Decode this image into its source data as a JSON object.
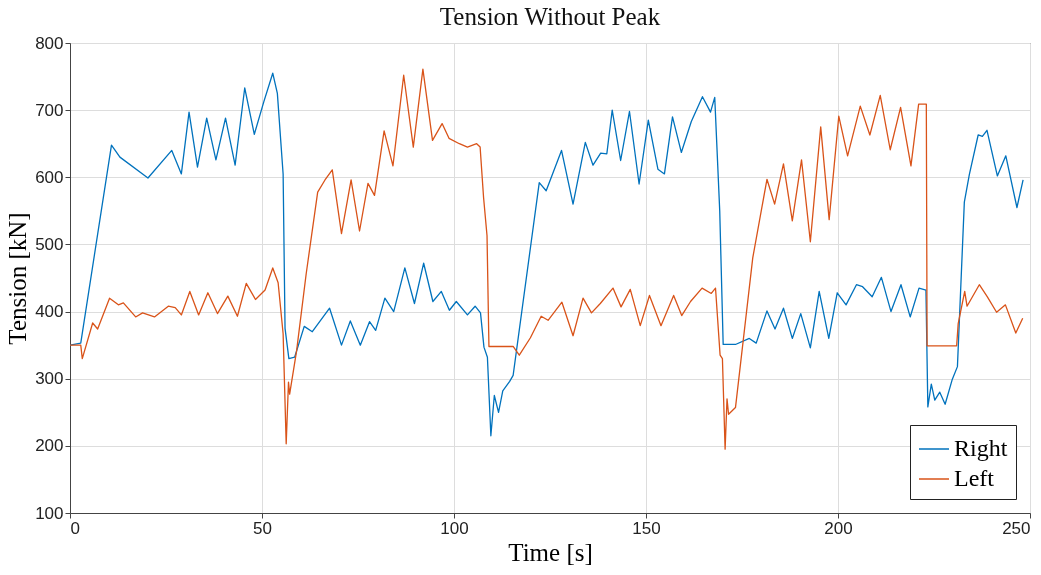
{
  "chart_data": {
    "type": "line",
    "title": "Tension Without Peak",
    "xlabel": "Time [s]",
    "ylabel": "Tension [kN]",
    "xlim": [
      0,
      250
    ],
    "xticks": [
      0,
      50,
      100,
      150,
      200,
      250
    ],
    "ylim": [
      100,
      800
    ],
    "yticks": [
      100,
      200,
      300,
      400,
      500,
      600,
      700,
      800
    ],
    "grid": true,
    "legend": "bottom right",
    "line_style": "solid",
    "marker": "none",
    "series": [
      {
        "name": "Right",
        "color": "#0072bd",
        "x": [
          0,
          2.8,
          10.8,
          13,
          20.3,
          26.5,
          29,
          31,
          33.2,
          35.6,
          38,
          40.5,
          43,
          45.5,
          48,
          50.5,
          52.8,
          54,
          55.5,
          56,
          57,
          58.5,
          61,
          63.1,
          67.6,
          70.7,
          73,
          75.6,
          78,
          79.6,
          82,
          84.3,
          87.2,
          89.7,
          92.1,
          94.5,
          96.7,
          98.8,
          100.6,
          103.5,
          105.5,
          106.9,
          107.8,
          108.7,
          109.6,
          110.5,
          111.6,
          112.7,
          114.5,
          115.4,
          122.2,
          124,
          128,
          131,
          134.2,
          136.2,
          138.2,
          139.8,
          141.2,
          143.4,
          145.7,
          148.2,
          150.6,
          153.1,
          154.8,
          156.9,
          159.2,
          161.8,
          164.7,
          166.8,
          167.9,
          169.2,
          170.1,
          173.3,
          176.9,
          178.7,
          181.5,
          183.6,
          185.8,
          188.1,
          190.3,
          192.8,
          195.1,
          197.6,
          199.8,
          202.1,
          204.8,
          206.4,
          208.9,
          211.3,
          213.8,
          216.4,
          218.8,
          221.1,
          222.9,
          223.4,
          224.3,
          225.2,
          226.5,
          227.9,
          229.7,
          231.1,
          232.9,
          234.2,
          236.5,
          237.6,
          238.8,
          241.5,
          243.7,
          246.6,
          248.2
        ],
        "values": [
          350,
          353,
          648,
          630,
          599,
          640,
          605,
          697,
          615,
          688,
          626,
          688,
          618,
          733,
          664,
          713,
          755,
          725,
          605,
          375,
          330,
          332,
          378,
          370,
          405,
          350,
          386,
          350,
          385,
          372,
          420,
          400,
          465,
          412,
          472,
          415,
          430,
          402,
          415,
          395,
          408,
          398,
          347,
          332,
          215,
          275,
          250,
          282,
          296,
          305,
          592,
          580,
          640,
          560,
          652,
          618,
          636,
          635,
          700,
          625,
          698,
          590,
          685,
          612,
          605,
          690,
          637,
          683,
          720,
          697,
          719,
          550,
          351,
          351,
          360,
          353,
          401,
          374,
          405,
          360,
          397,
          346,
          430,
          360,
          428,
          410,
          440,
          437,
          422,
          451,
          400,
          440,
          392,
          435,
          432,
          258,
          292,
          268,
          280,
          262,
          298,
          318,
          563,
          604,
          663,
          661,
          670,
          602,
          632,
          555,
          596
        ]
      },
      {
        "name": "Left",
        "color": "#d95319",
        "x": [
          0,
          2.8,
          3.2,
          5.9,
          7.2,
          10.3,
          12.6,
          13.9,
          17.1,
          18.9,
          22,
          25.6,
          27.4,
          29,
          31.2,
          33.5,
          35.9,
          38.4,
          41.1,
          43.6,
          45.9,
          48.3,
          50.8,
          52.8,
          54.2,
          55.5,
          56.3,
          56.9,
          57.2,
          59,
          61.5,
          64.5,
          66.4,
          68.3,
          70.7,
          73.2,
          75.4,
          77.6,
          79.3,
          81.8,
          84.1,
          86.9,
          89.4,
          91.9,
          94.4,
          96.9,
          98.7,
          101.4,
          103.5,
          105.9,
          106.8,
          107.7,
          108.6,
          109.1,
          115.4,
          117,
          119.9,
          122.7,
          124.5,
          128.1,
          131,
          133.6,
          135.8,
          138.1,
          141.4,
          143.5,
          145.9,
          148.5,
          150.9,
          153.9,
          157.2,
          159.3,
          161.6,
          164.6,
          167,
          168.1,
          169.3,
          169.9,
          170.6,
          171.1,
          171.5,
          173.3,
          177.8,
          181.5,
          183.5,
          185.8,
          188.1,
          190.5,
          192.8,
          195.5,
          197.7,
          200.2,
          202.5,
          205.8,
          208.3,
          211,
          213.6,
          216.3,
          219,
          221,
          223,
          223.2,
          230.9,
          231.3,
          233,
          233.6,
          236.8,
          238.9,
          241.3,
          243.6,
          246.3,
          248.1
        ],
        "values": [
          350,
          350,
          330,
          383,
          374,
          420,
          410,
          413,
          392,
          398,
          392,
          408,
          406,
          395,
          430,
          395,
          428,
          397,
          423,
          393,
          442,
          418,
          432,
          465,
          443,
          367,
          203,
          295,
          277,
          341,
          456,
          578,
          596,
          611,
          516,
          596,
          520,
          591,
          573,
          669,
          617,
          752,
          645,
          761,
          655,
          680,
          658,
          650,
          645,
          650,
          645,
          570,
          513,
          348,
          348,
          335,
          361,
          393,
          387,
          414,
          364,
          420,
          398,
          412,
          435,
          407,
          433,
          379,
          424,
          379,
          424,
          394,
          415,
          435,
          427,
          435,
          335,
          330,
          195,
          270,
          247,
          257,
          480,
          597,
          560,
          620,
          535,
          626,
          504,
          675,
          537,
          691,
          632,
          706,
          663,
          722,
          641,
          704,
          617,
          709,
          709,
          349,
          349,
          382,
          430,
          408,
          440,
          422,
          399,
          410,
          368,
          390
        ]
      }
    ]
  }
}
